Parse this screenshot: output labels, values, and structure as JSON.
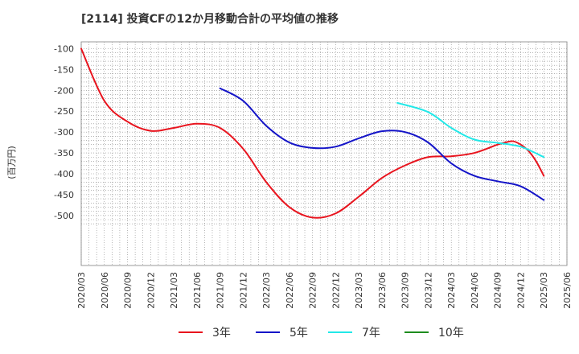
{
  "chart_data": {
    "type": "line",
    "title": "[2114]  投資CFの12か月移動合計の平均値の推移",
    "ylabel": "(百万円)",
    "xlabel": "",
    "ylim": [
      -520,
      -90
    ],
    "yticks": [
      -100,
      -150,
      -200,
      -250,
      -300,
      -350,
      -400,
      -450,
      -500
    ],
    "xticks": [
      "2020/03",
      "2020/06",
      "2020/09",
      "2020/12",
      "2021/03",
      "2021/06",
      "2021/09",
      "2021/12",
      "2022/03",
      "2022/06",
      "2022/09",
      "2022/12",
      "2023/03",
      "2023/06",
      "2023/09",
      "2023/12",
      "2024/03",
      "2024/06",
      "2024/09",
      "2024/12",
      "2025/03",
      "2025/06"
    ],
    "grid": true,
    "legend_position": "bottom",
    "series": [
      {
        "name": "3年",
        "color": "#e8141e",
        "points": [
          [
            "2020/03",
            -100
          ],
          [
            "2020/06",
            -225
          ],
          [
            "2020/09",
            -275
          ],
          [
            "2020/12",
            -297
          ],
          [
            "2021/03",
            -290
          ],
          [
            "2021/06",
            -280
          ],
          [
            "2021/09",
            -290
          ],
          [
            "2021/12",
            -340
          ],
          [
            "2022/03",
            -420
          ],
          [
            "2022/06",
            -480
          ],
          [
            "2022/09",
            -505
          ],
          [
            "2022/12",
            -495
          ],
          [
            "2023/03",
            -455
          ],
          [
            "2023/06",
            -410
          ],
          [
            "2023/09",
            -380
          ],
          [
            "2023/12",
            -360
          ],
          [
            "2024/03",
            -358
          ],
          [
            "2024/06",
            -350
          ],
          [
            "2024/09",
            -330
          ],
          [
            "2024/10",
            -325
          ],
          [
            "2024/11",
            -322
          ],
          [
            "2024/12",
            -330
          ],
          [
            "2025/01",
            -345
          ],
          [
            "2025/02",
            -370
          ],
          [
            "2025/03",
            -405
          ]
        ]
      },
      {
        "name": "5年",
        "color": "#1414c8",
        "points": [
          [
            "2021/09",
            -195
          ],
          [
            "2021/12",
            -225
          ],
          [
            "2022/03",
            -285
          ],
          [
            "2022/06",
            -325
          ],
          [
            "2022/09",
            -338
          ],
          [
            "2022/12",
            -335
          ],
          [
            "2023/03",
            -315
          ],
          [
            "2023/06",
            -298
          ],
          [
            "2023/09",
            -300
          ],
          [
            "2023/12",
            -325
          ],
          [
            "2024/03",
            -375
          ],
          [
            "2024/06",
            -405
          ],
          [
            "2024/09",
            -418
          ],
          [
            "2024/12",
            -430
          ],
          [
            "2025/03",
            -463
          ]
        ]
      },
      {
        "name": "7年",
        "color": "#22e8e8",
        "points": [
          [
            "2023/08",
            -230
          ],
          [
            "2023/12",
            -252
          ],
          [
            "2024/03",
            -290
          ],
          [
            "2024/06",
            -318
          ],
          [
            "2024/09",
            -326
          ],
          [
            "2024/12",
            -335
          ],
          [
            "2025/03",
            -360
          ]
        ]
      },
      {
        "name": "10年",
        "color": "#1e8c1e",
        "points": []
      }
    ]
  }
}
